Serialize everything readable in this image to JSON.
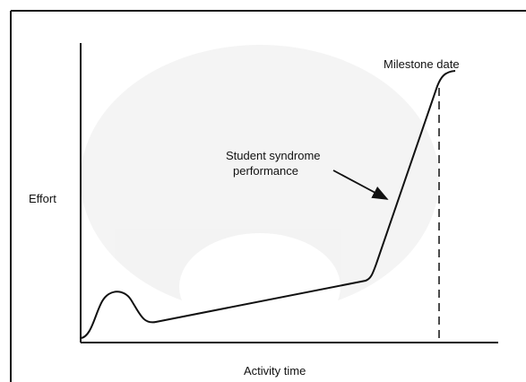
{
  "labels": {
    "y_axis": "Effort",
    "x_axis": "Activity time",
    "milestone": "Milestone date",
    "curve": [
      "Student syndrome",
      "performance"
    ]
  }
}
